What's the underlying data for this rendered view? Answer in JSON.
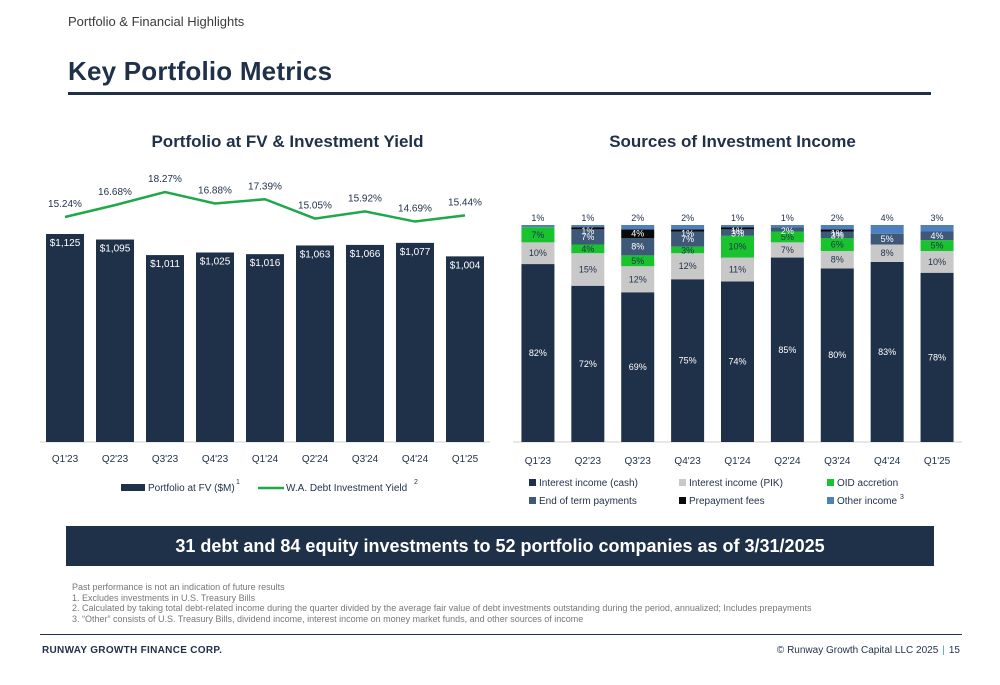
{
  "header": {
    "section": "Portfolio & Financial Highlights",
    "title": "Key Portfolio Metrics"
  },
  "banner": "31 debt and 84 equity investments to 52 portfolio companies as of 3/31/2025",
  "footnotes": [
    "Past performance is not an indication of future results",
    "1.  Excludes investments in U.S. Treasury Bills",
    "2.  Calculated by taking total debt-related income during the quarter divided by the average fair value of debt investments outstanding during the period, annualized; Includes prepayments",
    "3.  “Other” consists of U.S. Treasury Bills, dividend income, interest income on money market funds, and other sources of income"
  ],
  "footer": {
    "company": "RUNWAY GROWTH FINANCE CORP.",
    "copyright": "© Runway Growth Capital LLC 2025",
    "separator": "|",
    "page_number": "15"
  },
  "colors": {
    "navy": "#1f3049",
    "green": "#1fa84a",
    "gray": "#c8c8c8",
    "bright_green": "#18c32e",
    "slate": "#3e5878",
    "black": "#0a0a0a",
    "blue": "#4e7fbf"
  },
  "chart_data": [
    {
      "type": "bar",
      "title": "Portfolio at FV & Investment Yield",
      "categories": [
        "Q1'23",
        "Q2'23",
        "Q3'23",
        "Q4'23",
        "Q1'24",
        "Q2'24",
        "Q3'24",
        "Q4'24",
        "Q1'25"
      ],
      "series": [
        {
          "name": "Portfolio at FV ($M)",
          "superscript": "1",
          "type": "bar",
          "values": [
            1125,
            1095,
            1011,
            1025,
            1016,
            1063,
            1066,
            1077,
            1004
          ],
          "labels": [
            "$1,125",
            "$1,095",
            "$1,011",
            "$1,025",
            "$1,016",
            "$1,063",
            "$1,066",
            "$1,077",
            "$1,004"
          ]
        },
        {
          "name": "W.A. Debt Investment Yield",
          "superscript": "2",
          "type": "line",
          "values": [
            15.24,
            16.68,
            18.27,
            16.88,
            17.39,
            15.05,
            15.92,
            14.69,
            15.44
          ],
          "labels": [
            "15.24%",
            "16.68%",
            "18.27%",
            "16.88%",
            "17.39%",
            "15.05%",
            "15.92%",
            "14.69%",
            "15.44%"
          ]
        }
      ],
      "legend": "bottom",
      "grid": false
    },
    {
      "type": "bar",
      "stacked": true,
      "percent": true,
      "title": "Sources of Investment Income",
      "categories": [
        "Q1'23",
        "Q2'23",
        "Q3'23",
        "Q4'23",
        "Q1'24",
        "Q2'24",
        "Q3'24",
        "Q4'24",
        "Q1'25"
      ],
      "series": [
        {
          "name": "Interest income (cash)",
          "values": [
            82,
            72,
            69,
            75,
            74,
            85,
            80,
            83,
            78
          ]
        },
        {
          "name": "Interest income (PIK)",
          "values": [
            10,
            15,
            12,
            12,
            11,
            7,
            8,
            8,
            10
          ]
        },
        {
          "name": "OID accretion",
          "values": [
            7,
            4,
            5,
            3,
            10,
            5,
            6,
            0,
            5
          ]
        },
        {
          "name": "End of term payments",
          "values": [
            0,
            7,
            8,
            7,
            3,
            2,
            3,
            5,
            4
          ]
        },
        {
          "name": "Prepayment fees",
          "values": [
            0,
            1,
            4,
            1,
            1,
            0,
            1,
            0,
            0
          ]
        },
        {
          "name": "Other income",
          "superscript": "3",
          "values": [
            1,
            1,
            2,
            2,
            1,
            1,
            2,
            4,
            3
          ]
        }
      ],
      "legend": "bottom",
      "grid": false
    }
  ]
}
